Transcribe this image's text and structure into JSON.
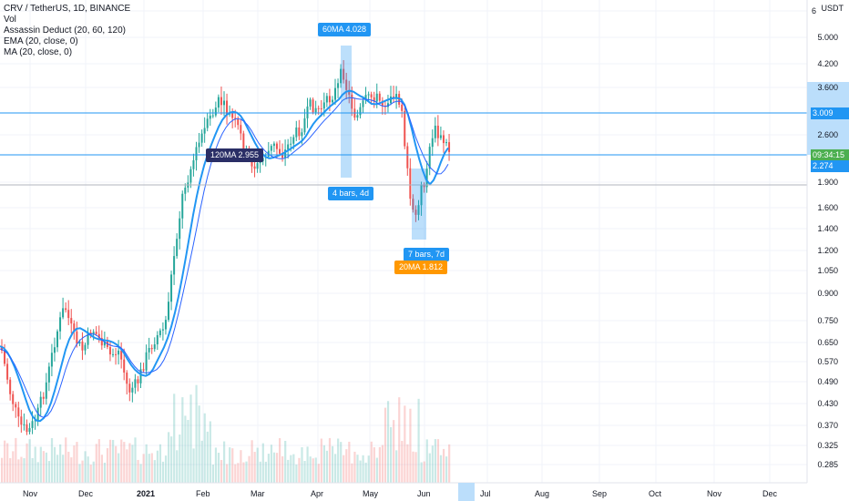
{
  "legend": {
    "symbol": "CRV / TetherUS, 1D, BINANCE",
    "vol": "Vol",
    "assassin": "Assassin Deduct (20, 60, 120)",
    "ema": "EMA (20, close, 0)",
    "ma": "MA (20, close, 0)"
  },
  "price_axis": {
    "unit": "USDT",
    "ticks": [
      "6",
      "5.000",
      "4.200",
      "3.600",
      "2.600",
      "1.900",
      "1.600",
      "1.400",
      "1.200",
      "1.050",
      "0.900",
      "0.750",
      "0.650",
      "0.570",
      "0.490",
      "0.430",
      "0.370",
      "0.325",
      "0.285"
    ]
  },
  "time_axis": {
    "ticks": [
      "Nov",
      "Dec",
      "2021",
      "Feb",
      "Mar",
      "Apr",
      "May",
      "Jun",
      "Jul",
      "Aug",
      "Sep",
      "Oct",
      "Nov",
      "Dec"
    ]
  },
  "badges": {
    "upper": "3.009",
    "countdown": "09:34:15",
    "current": "2.274"
  },
  "annotations": {
    "ma60": "60MA 4.028",
    "ma120": "120MA 2.955",
    "bars4": "4 bars, 4d",
    "bars7": "7 bars, 7d",
    "ma20": "20MA 1.812"
  },
  "colors": {
    "up": "#26a69a",
    "down": "#ef5350",
    "ema": "#2196f3",
    "ma": "#2962ff",
    "hline": "#2196f3",
    "grid": "#f0f3fa"
  },
  "chart_data": {
    "type": "candlestick",
    "symbol": "CRV / TetherUS",
    "interval": "1D",
    "exchange": "BINANCE",
    "x_range": [
      "Nov",
      "Dec"
    ],
    "y_scale": "log",
    "ylim": [
      0.27,
      6
    ],
    "horizontal_lines": [
      3.009,
      2.274
    ],
    "last_price": 2.274
  }
}
